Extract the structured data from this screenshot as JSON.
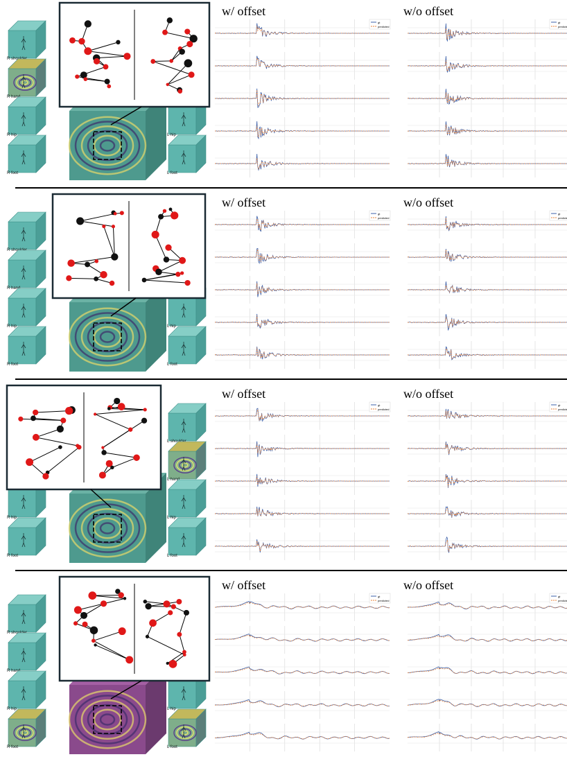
{
  "panels": [
    {
      "title_with": "w/ offset",
      "title_without": "w/o offset",
      "left_labels": [
        "R shoulder",
        "R hand",
        "R hip",
        "R foot"
      ],
      "right_labels": [
        "L hip",
        "L foot"
      ],
      "style": "spiky",
      "legend": [
        "gt",
        "predicted"
      ]
    },
    {
      "title_with": "w/ offset",
      "title_without": "w/o offset",
      "left_labels": [
        "R shoulder",
        "R hand",
        "R hip",
        "R foot"
      ],
      "right_labels": [
        "L hip",
        "L foot"
      ],
      "style": "spiky",
      "legend": [
        "gt",
        "predicted"
      ]
    },
    {
      "title_with": "w/ offset",
      "title_without": "w/o offset",
      "left_labels": [
        "R hip",
        "R foot"
      ],
      "right_labels": [
        "L shoulder",
        "L hand",
        "L hip",
        "L foot"
      ],
      "style": "spiky",
      "legend": [
        "gt",
        "predicted"
      ]
    },
    {
      "title_with": "w/ offset",
      "title_without": "w/o offset",
      "left_labels": [
        "R shoulder",
        "R hand",
        "R hip",
        "R foot"
      ],
      "right_labels": [
        "L shoulder",
        "L hand",
        "L hip",
        "L foot"
      ],
      "style": "wavy",
      "legend": [
        "gt",
        "predicted"
      ]
    }
  ],
  "colors": {
    "gt": "#3b5fa8",
    "predicted": "#e8833a",
    "joint_red": "#e01818",
    "joint_black": "#111111",
    "cube_teal": "#5fb8b0"
  }
}
